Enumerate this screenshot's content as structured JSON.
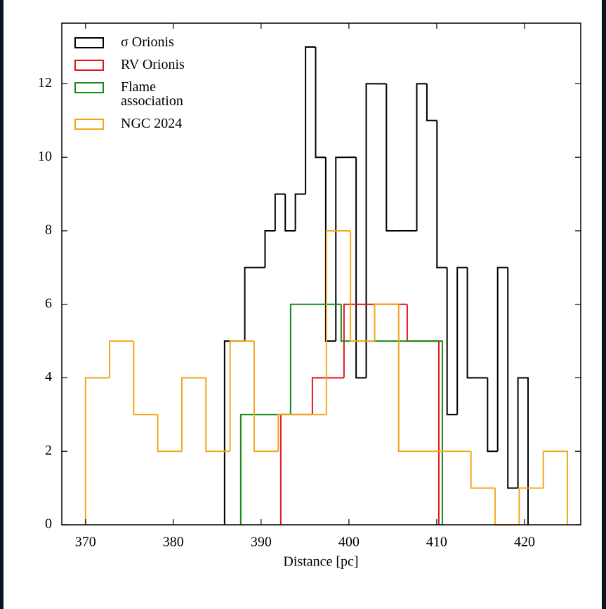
{
  "chart_data": {
    "type": "histogram",
    "x_label": "Distance [pc]",
    "xlim": [
      367.3,
      426.4
    ],
    "ylim": [
      0,
      13.65
    ],
    "xticks": [
      370,
      380,
      390,
      400,
      410,
      420
    ],
    "yticks": [
      0,
      2,
      4,
      6,
      8,
      10,
      12
    ],
    "legend": "upper left",
    "series": [
      {
        "name": "σ Orionis",
        "color": "#000000",
        "bins": [
          385.84,
          386.99,
          388.14,
          389.3,
          390.45,
          391.6,
          392.75,
          393.9,
          395.06,
          396.21,
          397.36,
          398.51,
          399.66,
          400.82,
          401.97,
          403.12,
          404.27,
          405.42,
          406.58,
          407.73,
          408.88,
          410.03,
          411.18,
          412.34,
          413.49,
          414.64,
          415.79,
          416.94,
          418.1,
          419.25,
          420.4
        ],
        "values": [
          5,
          5,
          7,
          7,
          8,
          9,
          8,
          9,
          13,
          10,
          5,
          10,
          10,
          4,
          12,
          12,
          8,
          8,
          8,
          12,
          11,
          7,
          3,
          7,
          4,
          4,
          2,
          7,
          1,
          4
        ]
      },
      {
        "name": "RV Orionis",
        "color": "#e0151b",
        "bins": [
          392.24,
          394.04,
          395.84,
          397.64,
          399.44,
          401.24,
          403.04,
          404.84,
          406.64,
          408.44,
          410.24
        ],
        "values": [
          3,
          3,
          4,
          4,
          6,
          6,
          6,
          6,
          5,
          5
        ]
      },
      {
        "name": "Flame association",
        "color": "#178a1a",
        "bins": [
          387.68,
          390.56,
          393.36,
          396.24,
          399.12,
          402.0,
          404.88,
          407.76,
          410.64
        ],
        "values": [
          3,
          3,
          6,
          6,
          5,
          5,
          5,
          5
        ]
      },
      {
        "name": "NGC 2024",
        "color": "#f2a81d",
        "bins": [
          370.0,
          372.74,
          375.49,
          378.23,
          380.98,
          383.72,
          386.46,
          389.21,
          391.95,
          394.7,
          397.44,
          400.18,
          402.93,
          405.67,
          408.42,
          411.16,
          413.9,
          416.65,
          419.39,
          422.14,
          424.88
        ],
        "values": [
          4,
          5,
          3,
          2,
          4,
          2,
          5,
          2,
          3,
          3,
          8,
          5,
          6,
          2,
          2,
          2,
          1,
          0,
          1,
          2
        ]
      }
    ]
  }
}
